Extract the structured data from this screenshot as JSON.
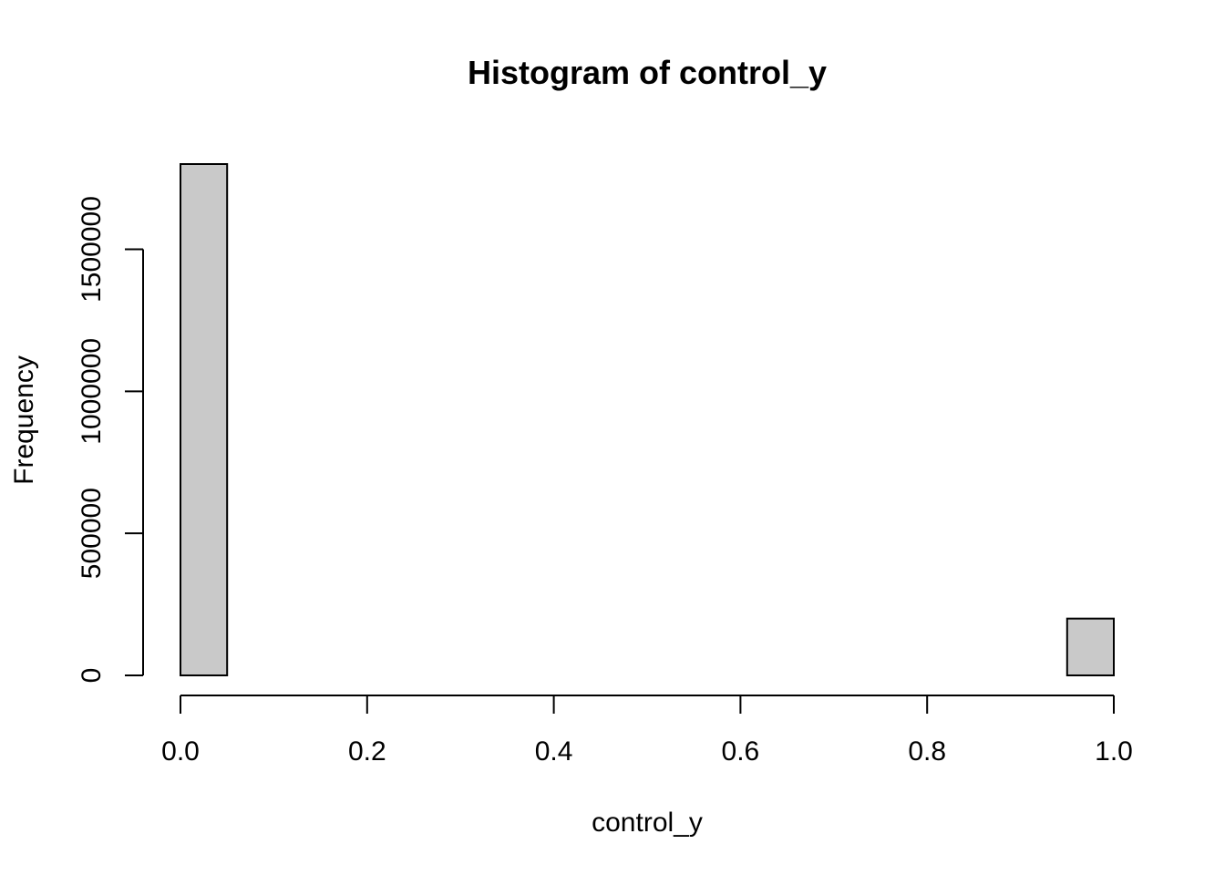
{
  "chart_data": {
    "type": "bar",
    "title": "Histogram of control_y",
    "xlabel": "control_y",
    "ylabel": "Frequency",
    "xlim": [
      0,
      1
    ],
    "ylim": [
      0,
      1800000
    ],
    "bin_width": 0.05,
    "bins": [
      {
        "start": 0.0,
        "end": 0.05,
        "count": 1800000
      },
      {
        "start": 0.05,
        "end": 0.1,
        "count": 0
      },
      {
        "start": 0.1,
        "end": 0.15,
        "count": 0
      },
      {
        "start": 0.15,
        "end": 0.2,
        "count": 0
      },
      {
        "start": 0.2,
        "end": 0.25,
        "count": 0
      },
      {
        "start": 0.25,
        "end": 0.3,
        "count": 0
      },
      {
        "start": 0.3,
        "end": 0.35,
        "count": 0
      },
      {
        "start": 0.35,
        "end": 0.4,
        "count": 0
      },
      {
        "start": 0.4,
        "end": 0.45,
        "count": 0
      },
      {
        "start": 0.45,
        "end": 0.5,
        "count": 0
      },
      {
        "start": 0.5,
        "end": 0.55,
        "count": 0
      },
      {
        "start": 0.55,
        "end": 0.6,
        "count": 0
      },
      {
        "start": 0.6,
        "end": 0.65,
        "count": 0
      },
      {
        "start": 0.65,
        "end": 0.7,
        "count": 0
      },
      {
        "start": 0.7,
        "end": 0.75,
        "count": 0
      },
      {
        "start": 0.75,
        "end": 0.8,
        "count": 0
      },
      {
        "start": 0.8,
        "end": 0.85,
        "count": 0
      },
      {
        "start": 0.85,
        "end": 0.9,
        "count": 0
      },
      {
        "start": 0.9,
        "end": 0.95,
        "count": 0
      },
      {
        "start": 0.95,
        "end": 1.0,
        "count": 200000
      }
    ],
    "x_ticks": [
      {
        "value": 0.0,
        "label": "0.0"
      },
      {
        "value": 0.2,
        "label": "0.2"
      },
      {
        "value": 0.4,
        "label": "0.4"
      },
      {
        "value": 0.6,
        "label": "0.6"
      },
      {
        "value": 0.8,
        "label": "0.8"
      },
      {
        "value": 1.0,
        "label": "1.0"
      }
    ],
    "y_ticks": [
      {
        "value": 0,
        "label": "0"
      },
      {
        "value": 500000,
        "label": "500000"
      },
      {
        "value": 1000000,
        "label": "1000000"
      },
      {
        "value": 1500000,
        "label": "1500000"
      }
    ],
    "bar_fill": "#c9c9c9",
    "bar_stroke": "#000000"
  }
}
